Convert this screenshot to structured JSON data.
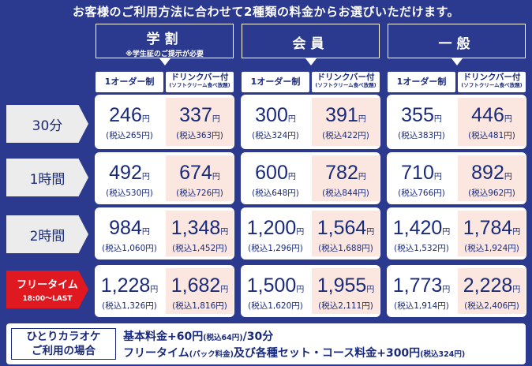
{
  "title": "お客様のご利用方法に合わせて2種類の料金からお選びいただけます。",
  "categories": [
    {
      "label": "学割",
      "note": "※学生証のご提示が必要"
    },
    {
      "label": "会員",
      "note": ""
    },
    {
      "label": "一般",
      "note": ""
    }
  ],
  "subheaders": {
    "one_order": "1オーダー制",
    "drink": "ドリンクバー付",
    "drink_note": "(ソフトクリーム食べ放題)"
  },
  "rows": [
    {
      "label": "30分",
      "cells": [
        {
          "price": "246",
          "tax": "(税込265円)"
        },
        {
          "price": "337",
          "tax": "(税込363円)"
        },
        {
          "price": "300",
          "tax": "(税込324円)"
        },
        {
          "price": "391",
          "tax": "(税込422円)"
        },
        {
          "price": "355",
          "tax": "(税込383円)"
        },
        {
          "price": "446",
          "tax": "(税込481円)"
        }
      ]
    },
    {
      "label": "1時間",
      "cells": [
        {
          "price": "492",
          "tax": "(税込530円)"
        },
        {
          "price": "674",
          "tax": "(税込726円)"
        },
        {
          "price": "600",
          "tax": "(税込648円)"
        },
        {
          "price": "782",
          "tax": "(税込844円)"
        },
        {
          "price": "710",
          "tax": "(税込766円)"
        },
        {
          "price": "892",
          "tax": "(税込962円)"
        }
      ]
    },
    {
      "label": "2時間",
      "cells": [
        {
          "price": "984",
          "tax": "(税込1,060円)"
        },
        {
          "price": "1,348",
          "tax": "(税込1,452円)"
        },
        {
          "price": "1,200",
          "tax": "(税込1,296円)"
        },
        {
          "price": "1,564",
          "tax": "(税込1,688円)"
        },
        {
          "price": "1,420",
          "tax": "(税込1,532円)"
        },
        {
          "price": "1,784",
          "tax": "(税込1,924円)"
        }
      ]
    },
    {
      "label": "フリータイム",
      "sublabel": "18:00～LAST",
      "cells": [
        {
          "price": "1,228",
          "tax": "(税込1,326円)"
        },
        {
          "price": "1,682",
          "tax": "(税込1,816円)"
        },
        {
          "price": "1,500",
          "tax": "(税込1,620円)"
        },
        {
          "price": "1,955",
          "tax": "(税込2,111円)"
        },
        {
          "price": "1,773",
          "tax": "(税込1,914円)"
        },
        {
          "price": "2,228",
          "tax": "(税込2,406円)"
        }
      ]
    }
  ],
  "yen": "円",
  "bottom": {
    "left1": "ひとりカラオケ",
    "left2": "ご利用の場合",
    "line1_a": "基本料金+60円",
    "line1_b": "(税込64円)",
    "line1_c": "/30分",
    "line2_a": "フリータイム",
    "line2_b": "(パック料金)",
    "line2_c": "及び各種セット・コース料金+300円",
    "line2_d": "(税込324円)"
  },
  "colors": {
    "background": "#2b3a8f",
    "text": "#1a2a7a",
    "drink_cell": "#fbe7df",
    "free_time": "#e0181f"
  }
}
